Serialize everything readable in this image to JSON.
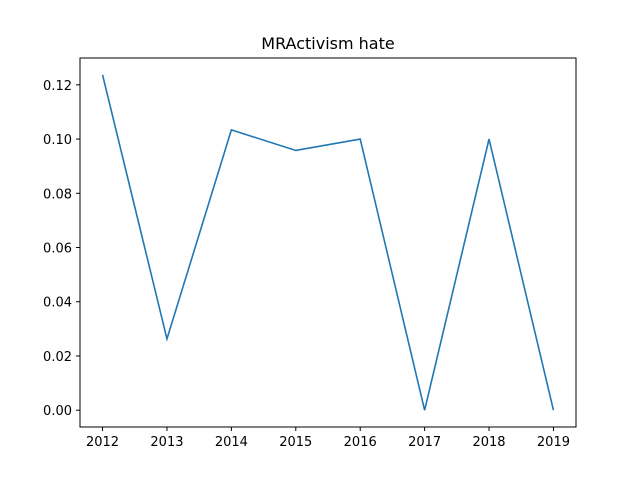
{
  "chart_data": {
    "type": "line",
    "title": "MRActivism hate",
    "xlabel": "",
    "ylabel": "",
    "x": [
      2012,
      2013,
      2014,
      2015,
      2016,
      2017,
      2018,
      2019
    ],
    "series": [
      {
        "values": [
          0.1237,
          0.0263,
          0.1034,
          0.0958,
          0.1,
          0.0,
          0.1,
          0.0
        ],
        "color": "#1f77b4"
      }
    ],
    "xlim": [
      2011.65,
      2019.35
    ],
    "ylim": [
      -0.0062,
      0.1299
    ],
    "x_ticks": [
      "2012",
      "2013",
      "2014",
      "2015",
      "2016",
      "2017",
      "2018",
      "2019"
    ],
    "y_ticks": [
      "0.00",
      "0.02",
      "0.04",
      "0.06",
      "0.08",
      "0.10",
      "0.12"
    ],
    "grid": false,
    "legend": "none"
  }
}
